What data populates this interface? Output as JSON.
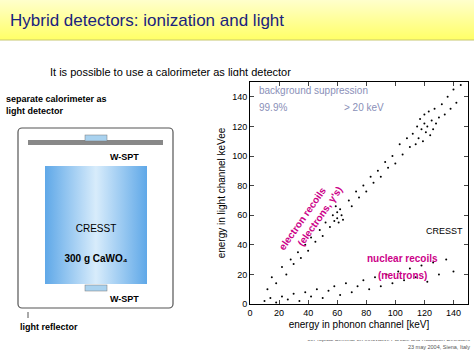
{
  "slide": {
    "title": "Hybrid detectors: ionization and light",
    "subtitle": "It is possible to use a calorimeter as light detector",
    "diagram": {
      "caption_top": [
        "separate calorimeter as",
        "light detector"
      ],
      "sensor_top": "W-SPT",
      "crystal_name": "CRESST",
      "crystal_mass": "300 g CaWO₄",
      "sensor_bottom": "W-SPT",
      "caption_bottom": "light reflector"
    },
    "footer": [
      "9th Topical Seminar on Innovative Particle and Radiation Detectors",
      "23 may 2004, Siena, Italy"
    ]
  },
  "chart_data": {
    "type": "scatter",
    "x_label": "energy in phonon channel [keV]",
    "y_label": "energy in light channel keVee",
    "annotations": [
      "background suppression",
      "99.9%",
      "> 20 keV",
      "electron recoils",
      "(electrons, γ's)",
      "CRESST",
      "nuclear recoils",
      "(neutrons)"
    ],
    "xlim": [
      0,
      150
    ],
    "ylim": [
      0,
      150
    ],
    "xticks": [
      0,
      20,
      40,
      60,
      80,
      100,
      120,
      140
    ],
    "yticks": [
      0,
      20,
      40,
      60,
      80,
      100,
      120,
      140
    ],
    "grid": false,
    "marker": "dot",
    "series": [
      {
        "color": "#000000",
        "x": [
          12,
          15,
          18,
          22,
          25,
          28,
          30,
          33,
          35,
          38,
          40,
          42,
          45,
          48,
          50,
          52,
          55,
          57,
          58,
          60,
          60,
          61,
          62,
          63,
          59,
          64,
          68,
          70,
          73,
          75,
          78,
          80,
          83,
          85,
          88,
          90,
          93,
          95,
          98,
          100,
          103,
          105,
          108,
          110,
          112,
          114,
          115,
          116,
          117,
          118,
          119,
          120,
          120,
          121,
          122,
          123,
          124,
          125,
          126,
          127,
          128,
          130,
          132,
          134,
          136,
          138,
          140,
          142,
          145
        ],
        "values": [
          10,
          18,
          14,
          25,
          20,
          30,
          27,
          35,
          31,
          40,
          36,
          45,
          42,
          50,
          46,
          55,
          52,
          60,
          56,
          62,
          58,
          55,
          64,
          60,
          66,
          57,
          70,
          66,
          76,
          72,
          80,
          76,
          86,
          82,
          90,
          86,
          96,
          92,
          100,
          95,
          108,
          101,
          112,
          106,
          115,
          108,
          120,
          112,
          125,
          118,
          110,
          122,
          128,
          116,
          120,
          130,
          114,
          124,
          118,
          132,
          122,
          126,
          135,
          128,
          140,
          132,
          145,
          136,
          148
        ]
      },
      {
        "color": "#000000",
        "x": [
          10,
          14,
          18,
          22,
          26,
          30,
          34,
          38,
          42,
          46,
          50,
          54,
          58,
          62,
          66,
          70,
          74,
          78,
          82,
          86,
          90,
          94,
          98,
          102,
          106,
          110,
          114,
          118,
          122,
          126,
          130,
          135,
          140
        ],
        "values": [
          2,
          4,
          1,
          5,
          3,
          7,
          2,
          8,
          5,
          10,
          4,
          9,
          12,
          6,
          14,
          8,
          12,
          16,
          10,
          18,
          12,
          20,
          14,
          22,
          16,
          24,
          18,
          26,
          15,
          28,
          20,
          30,
          22
        ]
      }
    ]
  }
}
